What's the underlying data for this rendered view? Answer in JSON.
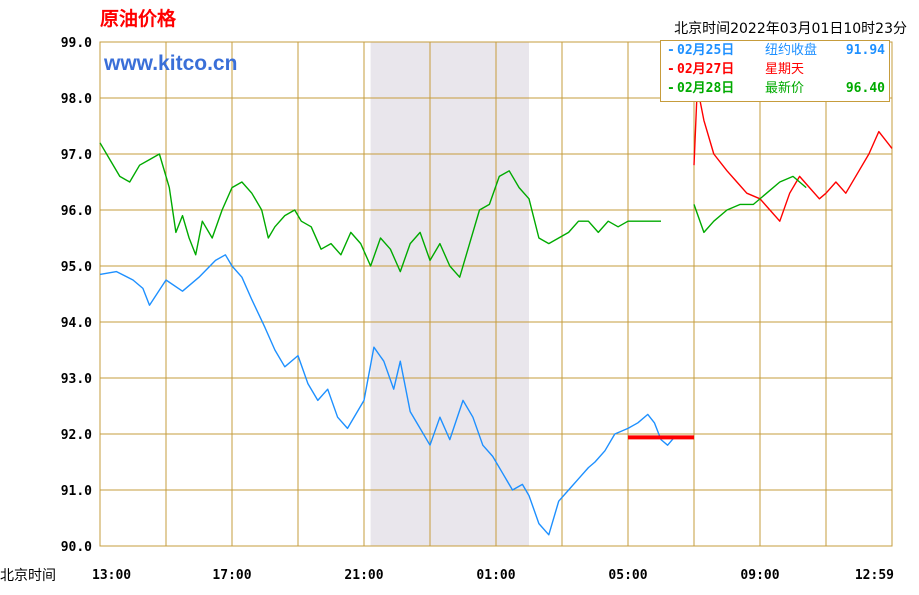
{
  "header": {
    "title": "原油价格",
    "site": "www.kitco.cn",
    "timestamp": "北京时间2022年03月01日10时23分"
  },
  "legend": [
    {
      "date": "02月25日",
      "label": "纽约收盘",
      "value": "91.94",
      "color": "#1e90ff"
    },
    {
      "date": "02月27日",
      "label": "星期天",
      "value": "",
      "color": "#ff0000"
    },
    {
      "date": "02月28日",
      "label": "最新价",
      "value": "96.40",
      "color": "#00aa00"
    }
  ],
  "x_axis_prefix": "北京时间",
  "chart_data": {
    "type": "line",
    "title": "原油价格",
    "xlabel": "",
    "ylabel": "",
    "ylim": [
      90.0,
      99.0
    ],
    "yticks": [
      "99.0",
      "98.0",
      "97.0",
      "96.0",
      "95.0",
      "94.0",
      "93.0",
      "92.0",
      "91.0",
      "90.0"
    ],
    "xticks": [
      "13:00",
      "17:00",
      "21:00",
      "01:00",
      "05:00",
      "09:00",
      "12:59"
    ],
    "x_unit": "hours since 13:00",
    "x_range": [
      0,
      24
    ],
    "shaded_region": [
      8.2,
      13.0
    ],
    "colors": {
      "grid": "#c69c3c",
      "shade": "#e9e6ec"
    },
    "series": [
      {
        "name": "02月25日",
        "color": "#1e90ff",
        "x": [
          0,
          0.5,
          1,
          1.3,
          1.5,
          2,
          2.5,
          3,
          3.5,
          3.8,
          4,
          4.3,
          4.6,
          5,
          5.3,
          5.6,
          6,
          6.3,
          6.6,
          6.9,
          7.2,
          7.5,
          8,
          8.3,
          8.6,
          8.9,
          9.1,
          9.4,
          9.7,
          10,
          10.3,
          10.6,
          11,
          11.3,
          11.6,
          11.9,
          12.2,
          12.5,
          12.8,
          13,
          13.3,
          13.6,
          13.9,
          14.2,
          14.5,
          14.8,
          15,
          15.3,
          15.6,
          16,
          16.3,
          16.6,
          16.8,
          17,
          17.2,
          17.4
        ],
        "y": [
          94.85,
          94.9,
          94.75,
          94.6,
          94.3,
          94.75,
          94.55,
          94.8,
          95.1,
          95.2,
          95.0,
          94.8,
          94.4,
          93.9,
          93.5,
          93.2,
          93.4,
          92.9,
          92.6,
          92.8,
          92.3,
          92.1,
          92.6,
          93.55,
          93.3,
          92.8,
          93.3,
          92.4,
          92.1,
          91.8,
          92.3,
          91.9,
          92.6,
          92.3,
          91.8,
          91.6,
          91.3,
          91.0,
          91.1,
          90.9,
          90.4,
          90.2,
          90.8,
          91.0,
          91.2,
          91.4,
          91.5,
          91.7,
          92.0,
          92.1,
          92.2,
          92.35,
          92.2,
          91.9,
          91.8,
          91.94
        ]
      },
      {
        "name": "",
        "color": "#ff0000",
        "x": [
          16.0,
          18.0
        ],
        "y": [
          91.94,
          91.94
        ]
      },
      {
        "name": "02月27日",
        "color": "#ff0000",
        "x": [
          18,
          18.1,
          18.3,
          18.6,
          19,
          19.3,
          19.6,
          20,
          20.3,
          20.6,
          20.9,
          21.2,
          21.5,
          21.8,
          22,
          22.3,
          22.6,
          23,
          23.3,
          23.6,
          24
        ],
        "y": [
          96.8,
          98.2,
          97.6,
          97.0,
          96.7,
          96.5,
          96.3,
          96.2,
          96.0,
          95.8,
          96.3,
          96.6,
          96.4,
          96.2,
          96.3,
          96.5,
          96.3,
          96.7,
          97.0,
          97.4,
          97.1
        ]
      },
      {
        "name": "02月28日",
        "color": "#00aa00",
        "x": [
          0,
          0.3,
          0.6,
          0.9,
          1.2,
          1.5,
          1.8,
          2.1,
          2.3,
          2.5,
          2.7,
          2.9,
          3.1,
          3.4,
          3.7,
          4.0,
          4.3,
          4.6,
          4.9,
          5.1,
          5.3,
          5.6,
          5.9,
          6.1,
          6.4,
          6.7,
          7.0,
          7.3,
          7.6,
          7.9,
          8.2,
          8.5,
          8.8,
          9.1,
          9.4,
          9.7,
          10,
          10.3,
          10.6,
          10.9,
          11.2,
          11.5,
          11.8,
          12.1,
          12.4,
          12.7,
          13.0,
          13.3,
          13.6,
          13.9,
          14.2,
          14.5,
          14.8,
          15.1,
          15.4,
          15.7,
          16.0,
          16.3,
          16.6,
          17.0
        ],
        "y": [
          97.2,
          96.9,
          96.6,
          96.5,
          96.8,
          96.9,
          97.0,
          96.4,
          95.6,
          95.9,
          95.5,
          95.2,
          95.8,
          95.5,
          96.0,
          96.4,
          96.5,
          96.3,
          96.0,
          95.5,
          95.7,
          95.9,
          96.0,
          95.8,
          95.7,
          95.3,
          95.4,
          95.2,
          95.6,
          95.4,
          95.0,
          95.5,
          95.3,
          94.9,
          95.4,
          95.6,
          95.1,
          95.4,
          95.0,
          94.8,
          95.4,
          96.0,
          96.1,
          96.6,
          96.7,
          96.4,
          96.2,
          95.5,
          95.4,
          95.5,
          95.6,
          95.8,
          95.8,
          95.6,
          95.8,
          95.7,
          95.8,
          95.8,
          95.8,
          95.8
        ]
      },
      {
        "name": "",
        "color": "#00aa00",
        "x": [
          18.0,
          18.3,
          18.6,
          19,
          19.4,
          19.8,
          20.2,
          20.6,
          21.0,
          21.2,
          21.4
        ],
        "y": [
          96.1,
          95.6,
          95.8,
          96.0,
          96.1,
          96.1,
          96.3,
          96.5,
          96.6,
          96.5,
          96.4
        ]
      }
    ]
  }
}
